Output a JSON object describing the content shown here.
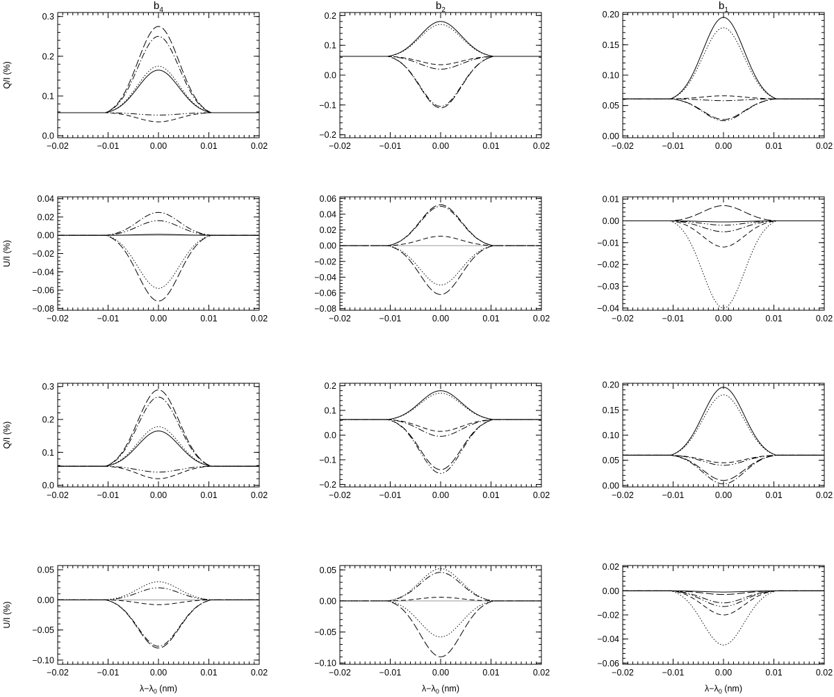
{
  "figure": {
    "column_titles": [
      {
        "base": "b",
        "sub": "4"
      },
      {
        "base": "b",
        "sub": "2"
      },
      {
        "base": "b",
        "sub": "1"
      }
    ],
    "xlabel_parts": {
      "base": "λ−λ",
      "sub": "0",
      "unit": " (nm)"
    }
  },
  "chart_data": [
    {
      "id": "r0c0",
      "type": "line",
      "ylabel": "Q/I (%)",
      "xlim": [
        -0.02,
        0.02
      ],
      "ylim": [
        -0.005,
        0.31
      ],
      "xticks": [
        -0.02,
        -0.01,
        0.0,
        0.01,
        0.02
      ],
      "xtick_labels": [
        "−0.02",
        "−0.01",
        "0.00",
        "0.01",
        "0.02"
      ],
      "yticks": [
        0.0,
        0.1,
        0.2,
        0.3
      ],
      "ytick_labels": [
        "0.0",
        "0.1",
        "0.2",
        "0.3"
      ],
      "baseline": null,
      "series": [
        {
          "style": "solid",
          "base": 0.058,
          "peak": 0.165
        },
        {
          "style": "dotted",
          "base": 0.058,
          "peak": 0.175
        },
        {
          "style": "dashdot",
          "base": 0.058,
          "peak": 0.25
        },
        {
          "style": "longdash",
          "base": 0.058,
          "peak": 0.275
        },
        {
          "style": "dashdotdot",
          "base": 0.058,
          "peak": 0.052
        },
        {
          "style": "dashed",
          "base": 0.058,
          "peak": 0.035
        }
      ]
    },
    {
      "id": "r0c1",
      "type": "line",
      "ylabel": "",
      "xlim": [
        -0.02,
        0.02
      ],
      "ylim": [
        -0.21,
        0.21
      ],
      "xticks": [
        -0.02,
        -0.01,
        0.0,
        0.01,
        0.02
      ],
      "xtick_labels": [
        "−0.02",
        "−0.01",
        "0.00",
        "0.01",
        "0.02"
      ],
      "yticks": [
        -0.2,
        -0.1,
        0.0,
        0.1,
        0.2
      ],
      "ytick_labels": [
        "−0.2",
        "−0.1",
        "0.0",
        "0.1",
        "0.2"
      ],
      "baseline": null,
      "series": [
        {
          "style": "solid",
          "base": 0.063,
          "peak": 0.18
        },
        {
          "style": "dotted",
          "base": 0.063,
          "peak": 0.17
        },
        {
          "style": "dashed",
          "base": 0.063,
          "peak": 0.035
        },
        {
          "style": "dashdot",
          "base": 0.063,
          "peak": 0.02
        },
        {
          "style": "longdash",
          "base": 0.063,
          "peak": -0.11
        },
        {
          "style": "dashdotdot",
          "base": 0.063,
          "peak": -0.105
        }
      ]
    },
    {
      "id": "r0c2",
      "type": "line",
      "ylabel": "",
      "xlim": [
        -0.02,
        0.02
      ],
      "ylim": [
        -0.003,
        0.203
      ],
      "xticks": [
        -0.02,
        -0.01,
        0.0,
        0.01,
        0.02
      ],
      "xtick_labels": [
        "−0.02",
        "−0.01",
        "0.00",
        "0.01",
        "0.02"
      ],
      "yticks": [
        0.0,
        0.05,
        0.1,
        0.15,
        0.2
      ],
      "ytick_labels": [
        "0.00",
        "0.05",
        "0.10",
        "0.15",
        "0.20"
      ],
      "baseline": null,
      "series": [
        {
          "style": "solid",
          "base": 0.061,
          "peak": 0.195
        },
        {
          "style": "dotted",
          "base": 0.061,
          "peak": 0.178
        },
        {
          "style": "dashed",
          "base": 0.061,
          "peak": 0.066
        },
        {
          "style": "dashdot",
          "base": 0.061,
          "peak": 0.058
        },
        {
          "style": "longdash",
          "base": 0.061,
          "peak": 0.027
        },
        {
          "style": "dashdotdot",
          "base": 0.061,
          "peak": 0.025
        }
      ]
    },
    {
      "id": "r1c0",
      "type": "line",
      "ylabel": "U/I (%)",
      "xlim": [
        -0.02,
        0.02
      ],
      "ylim": [
        -0.082,
        0.042
      ],
      "xticks": [
        -0.02,
        -0.01,
        0.0,
        0.01,
        0.02
      ],
      "xtick_labels": [
        "−0.02",
        "−0.01",
        "0.00",
        "0.01",
        "0.02"
      ],
      "yticks": [
        -0.08,
        -0.06,
        -0.04,
        -0.02,
        0.0,
        0.02,
        0.04
      ],
      "ytick_labels": [
        "−0.08",
        "−0.06",
        "−0.04",
        "−0.02",
        "0.00",
        "0.02",
        "0.04"
      ],
      "baseline": 0,
      "series": [
        {
          "style": "solid",
          "base": 0,
          "peak": 0.001
        },
        {
          "style": "dashdot",
          "base": 0,
          "peak": 0.025
        },
        {
          "style": "dashdotdot",
          "base": 0,
          "peak": 0.016
        },
        {
          "style": "dotted",
          "base": 0,
          "peak": -0.058
        },
        {
          "style": "longdash",
          "base": 0,
          "peak": -0.072
        }
      ]
    },
    {
      "id": "r1c1",
      "type": "line",
      "ylabel": "",
      "xlim": [
        -0.02,
        0.02
      ],
      "ylim": [
        -0.082,
        0.062
      ],
      "xticks": [
        -0.02,
        -0.01,
        0.0,
        0.01,
        0.02
      ],
      "xtick_labels": [
        "−0.02",
        "−0.01",
        "0.00",
        "0.01",
        "0.02"
      ],
      "yticks": [
        -0.08,
        -0.06,
        -0.04,
        -0.02,
        0.0,
        0.02,
        0.04,
        0.06
      ],
      "ytick_labels": [
        "−0.08",
        "−0.06",
        "−0.04",
        "−0.02",
        "0.00",
        "0.02",
        "0.04",
        "0.06"
      ],
      "baseline": 0,
      "series": [
        {
          "style": "longdash",
          "base": 0,
          "peak": 0.052
        },
        {
          "style": "dashdot",
          "base": 0,
          "peak": 0.05
        },
        {
          "style": "dashed",
          "base": 0,
          "peak": 0.012
        },
        {
          "style": "dotted",
          "base": 0,
          "peak": -0.05
        },
        {
          "style": "longdash",
          "base": 0,
          "peak": -0.062
        }
      ]
    },
    {
      "id": "r1c2",
      "type": "line",
      "ylabel": "",
      "xlim": [
        -0.02,
        0.02
      ],
      "ylim": [
        -0.041,
        0.011
      ],
      "xticks": [
        -0.02,
        -0.01,
        0.0,
        0.01,
        0.02
      ],
      "xtick_labels": [
        "−0.02",
        "−0.01",
        "0.00",
        "0.01",
        "0.02"
      ],
      "yticks": [
        -0.04,
        -0.03,
        -0.02,
        -0.01,
        0.0,
        0.01
      ],
      "ytick_labels": [
        "−0.04",
        "−0.03",
        "−0.02",
        "−0.01",
        "0.00",
        "0.01"
      ],
      "baseline": null,
      "series": [
        {
          "style": "longdash",
          "base": 0,
          "peak": 0.007
        },
        {
          "style": "solid",
          "base": 0,
          "peak": -0.0005
        },
        {
          "style": "dashdotdot",
          "base": 0,
          "peak": -0.002
        },
        {
          "style": "dashdot",
          "base": 0,
          "peak": -0.005
        },
        {
          "style": "dashed",
          "base": 0,
          "peak": -0.012
        },
        {
          "style": "dotted",
          "base": 0,
          "peak": -0.04
        }
      ]
    },
    {
      "id": "r2c0",
      "type": "line",
      "ylabel": "Q/I (%)",
      "xlim": [
        -0.02,
        0.02
      ],
      "ylim": [
        -0.005,
        0.31
      ],
      "xticks": [
        -0.02,
        -0.01,
        0.0,
        0.01,
        0.02
      ],
      "xtick_labels": [
        "−0.02",
        "−0.01",
        "0.00",
        "0.01",
        "0.02"
      ],
      "yticks": [
        0.0,
        0.1,
        0.2,
        0.3
      ],
      "ytick_labels": [
        "0.0",
        "0.1",
        "0.2",
        "0.3"
      ],
      "baseline": null,
      "series": [
        {
          "style": "solid",
          "base": 0.058,
          "peak": 0.165
        },
        {
          "style": "dotted",
          "base": 0.058,
          "peak": 0.178
        },
        {
          "style": "dashdot",
          "base": 0.058,
          "peak": 0.268
        },
        {
          "style": "longdash",
          "base": 0.058,
          "peak": 0.29
        },
        {
          "style": "dashdotdot",
          "base": 0.058,
          "peak": 0.04
        },
        {
          "style": "dashed",
          "base": 0.058,
          "peak": 0.02
        }
      ]
    },
    {
      "id": "r2c1",
      "type": "line",
      "ylabel": "",
      "xlim": [
        -0.02,
        0.02
      ],
      "ylim": [
        -0.21,
        0.21
      ],
      "xticks": [
        -0.02,
        -0.01,
        0.0,
        0.01,
        0.02
      ],
      "xtick_labels": [
        "−0.02",
        "−0.01",
        "0.00",
        "0.01",
        "0.02"
      ],
      "yticks": [
        -0.2,
        -0.1,
        0.0,
        0.1,
        0.2
      ],
      "ytick_labels": [
        "−0.2",
        "−0.1",
        "0.0",
        "0.1",
        "0.2"
      ],
      "baseline": null,
      "series": [
        {
          "style": "solid",
          "base": 0.063,
          "peak": 0.18
        },
        {
          "style": "dotted",
          "base": 0.063,
          "peak": 0.17
        },
        {
          "style": "dashed",
          "base": 0.063,
          "peak": 0.015
        },
        {
          "style": "dashdot",
          "base": 0.063,
          "peak": -0.005
        },
        {
          "style": "longdash",
          "base": 0.063,
          "peak": -0.14
        },
        {
          "style": "dashdotdot",
          "base": 0.063,
          "peak": -0.155
        }
      ]
    },
    {
      "id": "r2c2",
      "type": "line",
      "ylabel": "",
      "xlim": [
        -0.02,
        0.02
      ],
      "ylim": [
        -0.003,
        0.203
      ],
      "xticks": [
        -0.02,
        -0.01,
        0.0,
        0.01,
        0.02
      ],
      "xtick_labels": [
        "−0.02",
        "−0.01",
        "0.00",
        "0.01",
        "0.02"
      ],
      "yticks": [
        0.0,
        0.05,
        0.1,
        0.15,
        0.2
      ],
      "ytick_labels": [
        "0.00",
        "0.05",
        "0.10",
        "0.15",
        "0.20"
      ],
      "baseline": null,
      "series": [
        {
          "style": "solid",
          "base": 0.06,
          "peak": 0.195
        },
        {
          "style": "dotted",
          "base": 0.06,
          "peak": 0.18
        },
        {
          "style": "dashed",
          "base": 0.06,
          "peak": 0.045
        },
        {
          "style": "dashdotdot",
          "base": 0.06,
          "peak": 0.04
        },
        {
          "style": "longdash",
          "base": 0.06,
          "peak": 0.01
        },
        {
          "style": "dashdot",
          "base": 0.06,
          "peak": 0.003
        }
      ]
    },
    {
      "id": "r3c0",
      "type": "line",
      "ylabel": "U/I (%)",
      "xlim": [
        -0.02,
        0.02
      ],
      "ylim": [
        -0.107,
        0.057
      ],
      "xticks": [
        -0.02,
        -0.01,
        0.0,
        0.01,
        0.02
      ],
      "xtick_labels": [
        "−0.02",
        "−0.01",
        "0.00",
        "0.01",
        "0.02"
      ],
      "yticks": [
        -0.1,
        -0.05,
        0.0,
        0.05
      ],
      "ytick_labels": [
        "−0.10",
        "−0.05",
        "0.00",
        "0.05"
      ],
      "baseline": 0,
      "series": [
        {
          "style": "dotted",
          "base": 0,
          "peak": 0.03
        },
        {
          "style": "dashdotdot",
          "base": 0,
          "peak": 0.02
        },
        {
          "style": "dashed",
          "base": 0,
          "peak": -0.008
        },
        {
          "style": "longdash",
          "base": 0,
          "peak": -0.08
        },
        {
          "style": "dashdot",
          "base": 0,
          "peak": -0.077
        }
      ]
    },
    {
      "id": "r3c1",
      "type": "line",
      "ylabel": "",
      "xlim": [
        -0.02,
        0.02
      ],
      "ylim": [
        -0.102,
        0.057
      ],
      "xticks": [
        -0.02,
        -0.01,
        0.0,
        0.01,
        0.02
      ],
      "xtick_labels": [
        "−0.02",
        "−0.01",
        "0.00",
        "0.01",
        "0.02"
      ],
      "yticks": [
        -0.1,
        -0.05,
        0.0,
        0.05
      ],
      "ytick_labels": [
        "−0.10",
        "−0.05",
        "0.00",
        "0.05"
      ],
      "baseline": 0,
      "series": [
        {
          "style": "dotted",
          "base": 0,
          "peak": 0.052
        },
        {
          "style": "dashdot",
          "base": 0,
          "peak": 0.046
        },
        {
          "style": "dashed",
          "base": 0,
          "peak": 0.006
        },
        {
          "style": "dotted",
          "base": 0,
          "peak": -0.058
        },
        {
          "style": "longdash",
          "base": 0,
          "peak": -0.09
        }
      ]
    },
    {
      "id": "r3c2",
      "type": "line",
      "ylabel": "",
      "xlim": [
        -0.02,
        0.02
      ],
      "ylim": [
        -0.061,
        0.021
      ],
      "xticks": [
        -0.02,
        -0.01,
        0.0,
        0.01,
        0.02
      ],
      "xtick_labels": [
        "−0.02",
        "−0.01",
        "0.00",
        "0.01",
        "0.02"
      ],
      "yticks": [
        -0.06,
        -0.04,
        -0.02,
        0.0,
        0.02
      ],
      "ytick_labels": [
        "−0.06",
        "−0.04",
        "−0.02",
        "0.00",
        "0.02"
      ],
      "baseline": null,
      "series": [
        {
          "style": "solid",
          "base": 0,
          "peak": -0.001
        },
        {
          "style": "longdash",
          "base": 0,
          "peak": -0.003
        },
        {
          "style": "dashdot",
          "base": 0,
          "peak": -0.01
        },
        {
          "style": "dashdotdot",
          "base": 0,
          "peak": -0.013
        },
        {
          "style": "dashed",
          "base": 0,
          "peak": -0.02
        },
        {
          "style": "dotted",
          "base": 0,
          "peak": -0.045
        }
      ]
    }
  ]
}
